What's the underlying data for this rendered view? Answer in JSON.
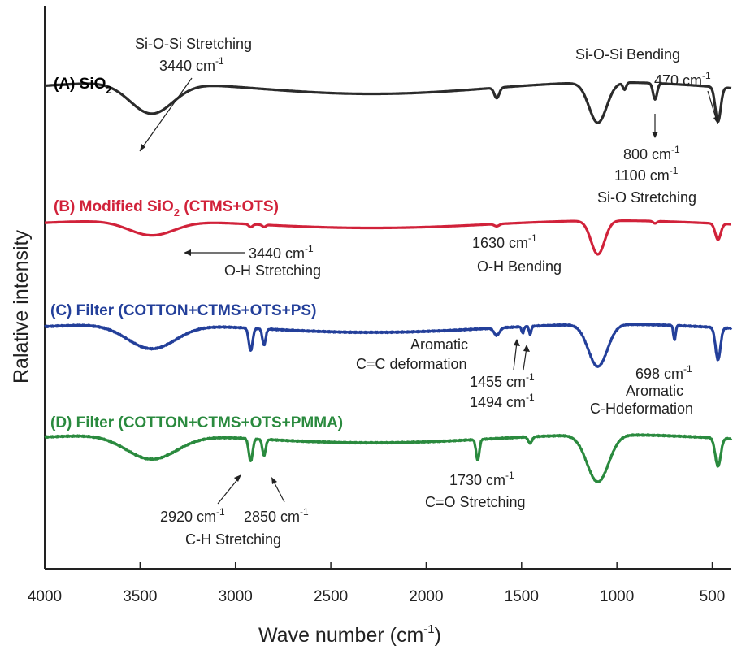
{
  "chart_data": {
    "type": "line",
    "xlabel": "Wave number (cm",
    "xlabel_sup": "-1",
    "xlabel_end": ")",
    "ylabel": "Ralative intensity",
    "xlim": [
      4000,
      400
    ],
    "x_ticks": [
      4000,
      3500,
      3000,
      2500,
      2000,
      1500,
      1000,
      500
    ],
    "x_tick_labels": [
      "4000",
      "3500",
      "3000",
      "2500",
      "2000",
      "1500",
      "1000",
      "500"
    ],
    "grid": false,
    "series": [
      {
        "name": "(A) SiO2",
        "label_main": "(A) SiO",
        "label_sub": "2",
        "color": "#2b2b2b",
        "baseline": 0.8,
        "bands": [
          [
            3440,
            0.27,
            160
          ],
          [
            1630,
            0.09,
            18
          ],
          [
            1100,
            0.35,
            65
          ],
          [
            960,
            0.06,
            12
          ],
          [
            800,
            0.14,
            15
          ],
          [
            470,
            0.3,
            20
          ]
        ]
      },
      {
        "name": "(B) Modified SiO2 (CTMS+OTS)",
        "label_main": "(B) Modified SiO",
        "label_sub": "2",
        "label_end": " (CTMS+OTS)",
        "color": "#d1223a",
        "baseline": 0.8,
        "bands": [
          [
            3440,
            0.2,
            170
          ],
          [
            2920,
            0.04,
            14
          ],
          [
            2850,
            0.03,
            12
          ],
          [
            1630,
            0.03,
            18
          ],
          [
            1100,
            0.46,
            50
          ],
          [
            800,
            0.03,
            14
          ],
          [
            470,
            0.22,
            20
          ]
        ]
      },
      {
        "name": "(C) Filter (COTTON+CTMS+OTS+PS)",
        "label_main": "(C) Filter (COTTON+CTMS+OTS+PS)",
        "color": "#233f9a",
        "baseline": 0.8,
        "bands": [
          [
            3440,
            0.3,
            180
          ],
          [
            2920,
            0.28,
            14
          ],
          [
            2850,
            0.2,
            12
          ],
          [
            1630,
            0.09,
            20
          ],
          [
            1494,
            0.08,
            8
          ],
          [
            1455,
            0.1,
            8
          ],
          [
            1100,
            0.52,
            70
          ],
          [
            698,
            0.18,
            8
          ],
          [
            470,
            0.4,
            18
          ]
        ]
      },
      {
        "name": "(D) Filter (COTTON+CTMS+OTS+PMMA)",
        "label_main": "(D) Filter (COTTON+CTMS+OTS+PMMA)",
        "color": "#2a8a3e",
        "baseline": 0.8,
        "bands": [
          [
            3440,
            0.3,
            190
          ],
          [
            2920,
            0.28,
            14
          ],
          [
            2850,
            0.2,
            12
          ],
          [
            1730,
            0.26,
            12
          ],
          [
            1455,
            0.08,
            14
          ],
          [
            1100,
            0.58,
            80
          ],
          [
            470,
            0.35,
            20
          ]
        ]
      }
    ],
    "annotations": [
      {
        "text": "Si-O-Si  Stretching",
        "sup": ""
      },
      {
        "text": "3440 cm",
        "sup": "-1"
      },
      {
        "text": "Si-O-Si  Bending",
        "sup": ""
      },
      {
        "text": "470 cm",
        "sup": "-1"
      },
      {
        "text": "800 cm",
        "sup": "-1"
      },
      {
        "text": "1100 cm",
        "sup": "-1"
      },
      {
        "text": "Si-O Stretching",
        "sup": ""
      },
      {
        "text": "3440 cm",
        "sup": "-1"
      },
      {
        "text": "O-H Stretching",
        "sup": ""
      },
      {
        "text": "1630 cm",
        "sup": "-1"
      },
      {
        "text": "O-H Bending",
        "sup": ""
      },
      {
        "text": "Aromatic",
        "sup": ""
      },
      {
        "text": "C=C deformation",
        "sup": ""
      },
      {
        "text": "1455 cm",
        "sup": "-1"
      },
      {
        "text": "1494 cm",
        "sup": "-1"
      },
      {
        "text": "698 cm",
        "sup": "-1"
      },
      {
        "text": "Aromatic",
        "sup": ""
      },
      {
        "text": "C-Hdeformation",
        "sup": ""
      },
      {
        "text": "1730 cm",
        "sup": "-1"
      },
      {
        "text": "C=O Stretching",
        "sup": ""
      },
      {
        "text": "2920 cm",
        "sup": "-1"
      },
      {
        "text": "2850 cm",
        "sup": "-1"
      },
      {
        "text": "C-H Stretching",
        "sup": ""
      }
    ]
  }
}
